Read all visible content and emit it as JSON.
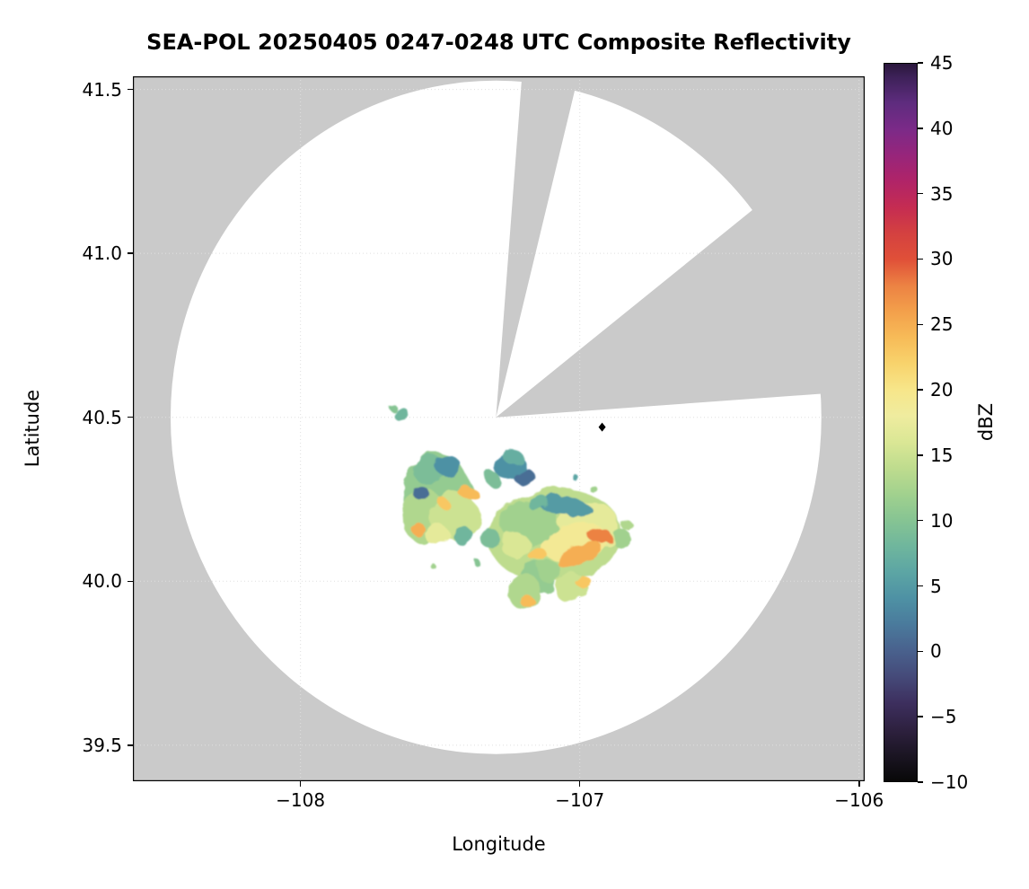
{
  "chart_data": {
    "type": "heatmap",
    "title": "SEA-POL 20250405 0247-0248 UTC Composite Reflectivity",
    "xlabel": "Longitude",
    "ylabel": "Latitude",
    "xlim": [
      -108.6,
      -105.98
    ],
    "ylim": [
      39.39,
      41.54
    ],
    "xticks": [
      -108,
      -107,
      -106
    ],
    "yticks": [
      39.5,
      40.0,
      40.5,
      41.0,
      41.5
    ],
    "grid": true,
    "colorbar": {
      "label": "dBZ",
      "min": -10,
      "max": 45,
      "ticks": [
        45,
        40,
        35,
        30,
        25,
        20,
        15,
        10,
        5,
        0,
        -5,
        -10
      ],
      "stops": [
        [
          -10,
          "#080808"
        ],
        [
          -8,
          "#1b1523"
        ],
        [
          -6,
          "#2e2140"
        ],
        [
          -4,
          "#3d2f5e"
        ],
        [
          -2,
          "#454a79"
        ],
        [
          0,
          "#49618d"
        ],
        [
          2,
          "#4a7a9c"
        ],
        [
          4,
          "#4e91a4"
        ],
        [
          6,
          "#5ca5a4"
        ],
        [
          8,
          "#6fb69d"
        ],
        [
          10,
          "#86c493"
        ],
        [
          12,
          "#a1d18e"
        ],
        [
          14,
          "#bedc8e"
        ],
        [
          16,
          "#dae795"
        ],
        [
          18,
          "#efec9f"
        ],
        [
          20,
          "#f7e68a"
        ],
        [
          22,
          "#f8d36c"
        ],
        [
          24,
          "#f7bb58"
        ],
        [
          26,
          "#f3a04b"
        ],
        [
          28,
          "#ec8243"
        ],
        [
          30,
          "#e05038"
        ],
        [
          32,
          "#d44140"
        ],
        [
          34,
          "#c52c52"
        ],
        [
          36,
          "#b02468"
        ],
        [
          38,
          "#97257b"
        ],
        [
          40,
          "#7b2a88"
        ],
        [
          42,
          "#5e2c7e"
        ],
        [
          44,
          "#3d2158"
        ],
        [
          45,
          "#2a173c"
        ]
      ]
    },
    "radar": {
      "center_lon": -107.3,
      "center_lat": 40.5,
      "rx_deg": 1.165,
      "ry_deg": 1.027,
      "no_data_color": "#cacaca",
      "coverage_color": "#ffffff",
      "blocked_sectors_deg": [
        [
          4.5,
          14
        ],
        [
          52,
          86
        ]
      ],
      "marker": {
        "lon": -106.92,
        "lat": 40.47,
        "shape": "diamond",
        "color": "#000000"
      }
    },
    "echo_format": [
      "lon",
      "lat",
      "rx_deg",
      "ry_deg",
      "rot_deg",
      "dbz"
    ],
    "echoes": [
      [
        -107.51,
        40.27,
        0.122,
        0.123,
        -10,
        11
      ],
      [
        -107.56,
        40.2,
        0.075,
        0.085,
        0,
        13
      ],
      [
        -107.45,
        40.2,
        0.09,
        0.07,
        20,
        15
      ],
      [
        -107.54,
        40.34,
        0.06,
        0.045,
        0,
        9
      ],
      [
        -107.09,
        40.14,
        0.24,
        0.14,
        -5,
        14
      ],
      [
        -107.18,
        40.18,
        0.1,
        0.07,
        0,
        12
      ],
      [
        -106.97,
        40.17,
        0.11,
        0.075,
        0,
        17
      ],
      [
        -107.15,
        40.01,
        0.065,
        0.045,
        0,
        11
      ],
      [
        -107.2,
        39.97,
        0.055,
        0.055,
        15,
        13
      ],
      [
        -107.03,
        39.98,
        0.06,
        0.042,
        -20,
        15
      ],
      [
        -107.11,
        40.03,
        0.04,
        0.035,
        0,
        12
      ],
      [
        -107.32,
        40.13,
        0.035,
        0.03,
        0,
        9
      ],
      [
        -107.23,
        40.11,
        0.05,
        0.04,
        0,
        16
      ],
      [
        -107.51,
        40.14,
        0.045,
        0.03,
        0,
        17
      ],
      [
        -107.42,
        40.14,
        0.035,
        0.028,
        0,
        8
      ],
      [
        -107.02,
        40.12,
        0.12,
        0.06,
        -10,
        19
      ],
      [
        -107.25,
        40.35,
        0.055,
        0.038,
        -15,
        4
      ],
      [
        -107.2,
        40.32,
        0.038,
        0.026,
        0,
        1
      ],
      [
        -107.24,
        40.38,
        0.035,
        0.022,
        0,
        7
      ],
      [
        -107.31,
        40.31,
        0.025,
        0.02,
        0,
        9
      ],
      [
        -107.47,
        40.35,
        0.045,
        0.032,
        0,
        4
      ],
      [
        -107.57,
        40.27,
        0.028,
        0.022,
        0,
        1
      ],
      [
        -107.06,
        40.23,
        0.1,
        0.025,
        5,
        5
      ],
      [
        -107.15,
        40.24,
        0.04,
        0.025,
        0,
        8
      ],
      [
        -107.4,
        40.27,
        0.03,
        0.022,
        0,
        24
      ],
      [
        -107.58,
        40.16,
        0.025,
        0.02,
        0,
        25
      ],
      [
        -107.49,
        40.24,
        0.04,
        0.015,
        40,
        23
      ],
      [
        -107.0,
        40.08,
        0.085,
        0.025,
        -25,
        25
      ],
      [
        -106.93,
        40.14,
        0.04,
        0.025,
        0,
        28
      ],
      [
        -107.15,
        40.08,
        0.035,
        0.02,
        0,
        23
      ],
      [
        -107.19,
        39.94,
        0.025,
        0.018,
        0,
        24
      ],
      [
        -106.99,
        40.0,
        0.028,
        0.018,
        0,
        23
      ],
      [
        -107.64,
        40.51,
        0.032,
        0.016,
        0,
        8
      ],
      [
        -107.67,
        40.53,
        0.014,
        0.01,
        0,
        10
      ],
      [
        -107.36,
        40.05,
        0.012,
        0.01,
        0,
        10
      ],
      [
        -107.53,
        40.05,
        0.01,
        0.008,
        0,
        12
      ],
      [
        -107.02,
        40.32,
        0.012,
        0.008,
        0,
        6
      ],
      [
        -106.95,
        40.28,
        0.015,
        0.01,
        0,
        12
      ],
      [
        -106.83,
        40.17,
        0.02,
        0.015,
        0,
        13
      ],
      [
        -106.85,
        40.13,
        0.035,
        0.028,
        0,
        12
      ]
    ]
  }
}
